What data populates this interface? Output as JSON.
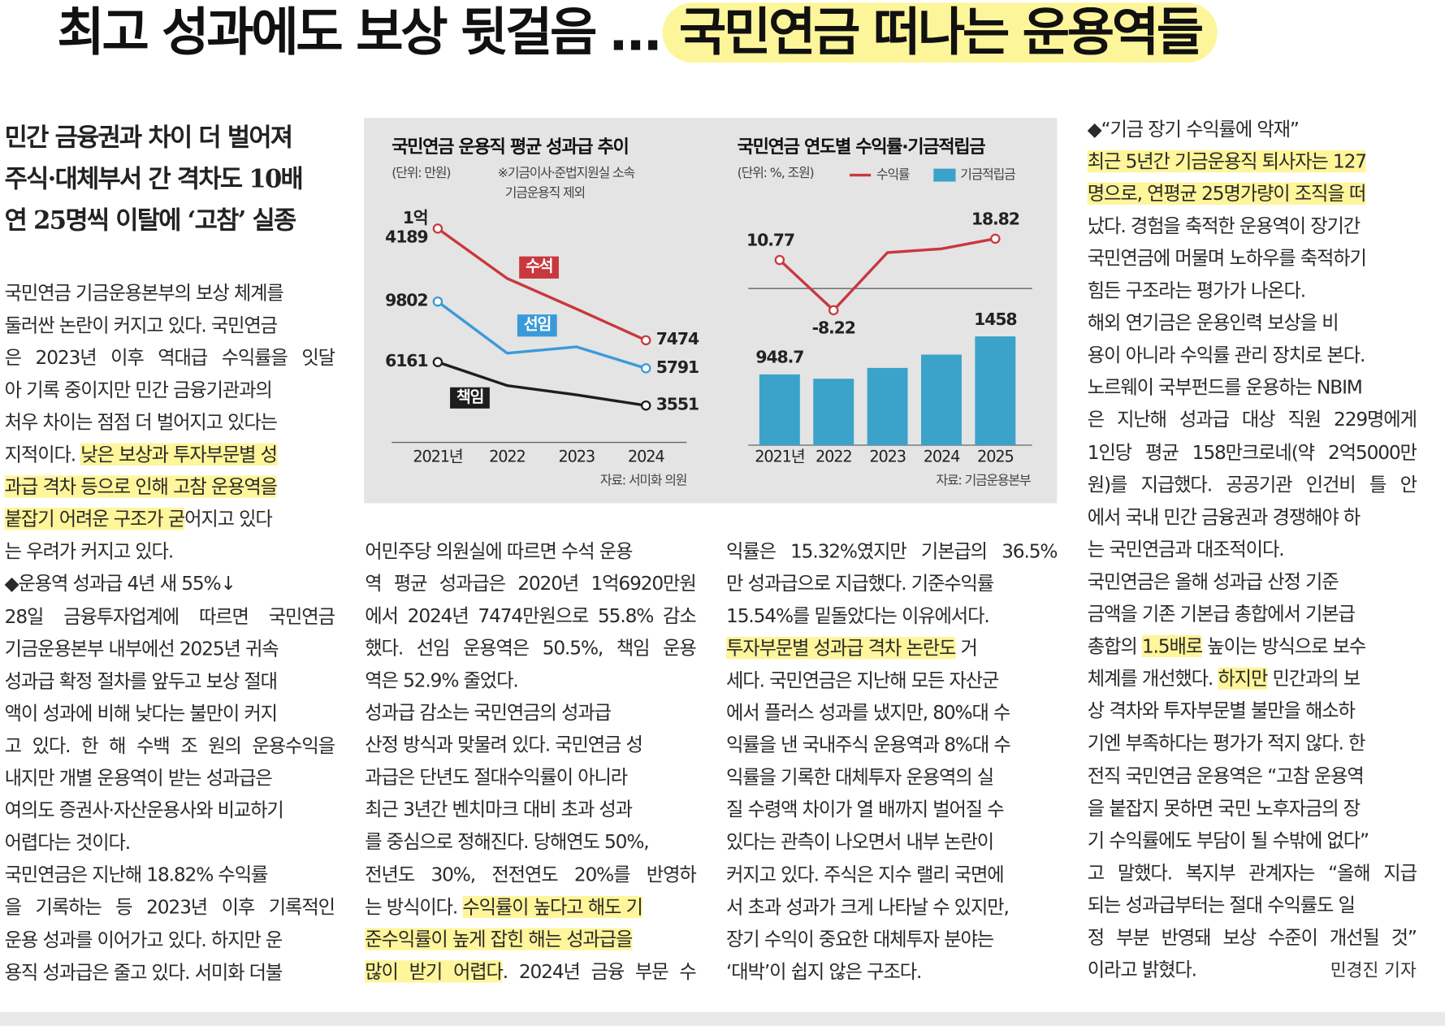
{
  "headline": [
    "최고 성과에도 보상 뒷걸음 …",
    "국민연금 떠나는 운용역들"
  ],
  "deck": [
    "민간 금융권과 차이 더 벌어져",
    "주식·대체부서 간 격차도 10배",
    "연 25명씩 이탈에 ‘고참’ 실종"
  ],
  "columns": [
    {
      "lines": [
        [
          "국민연금 기금운용본부의 보상 체계를"
        ],
        [
          "둘러싼 논란이 커지고 있다. 국민연금"
        ],
        [
          "은 2023년 이후 역대급 수익률을 잇달"
        ],
        [
          "아 기록 중이지만 민간 금융기관과의"
        ],
        [
          "처우 차이는 점점 더 벌어지고 있다는"
        ],
        [
          "지적이다. ",
          {
            "hl": "낮은 보상과 투자부문별 성"
          }
        ],
        [
          {
            "hl": "과급 격차 등으로 인해 고참 운용역을"
          }
        ],
        [
          {
            "hl": "붙잡기 어려운 구조가 굳"
          },
          "어지고 있다"
        ],
        [
          "는 우려가 커지고 있다."
        ],
        [
          "◆운용역 성과급 4년 새 55%↓"
        ],
        [
          "28일 금융투자업계에 따르면 국민연금"
        ],
        [
          "기금운용본부 내부에선 2025년 귀속"
        ],
        [
          "성과급 확정 절차를 앞두고 보상 절대"
        ],
        [
          "액이 성과에 비해 낮다는 불만이 커지"
        ],
        [
          "고 있다. 한 해 수백 조 원의 운용수익을"
        ],
        [
          "내지만 개별 운용역이 받는 성과급은"
        ],
        [
          "여의도 증권사·자산운용사와 비교하기"
        ],
        [
          "어렵다는 것이다."
        ],
        [
          "국민연금은 지난해 18.82% 수익률"
        ],
        [
          "을 기록하는 등 2023년 이후 기록적인"
        ],
        [
          "운용 성과를 이어가고 있다. 하지만 운"
        ],
        [
          "용직 성과급은 줄고 있다. 서미화 더불"
        ]
      ]
    },
    {
      "lines": [
        [
          "어민주당 의원실에 따르면 수석 운용"
        ],
        [
          "역 평균 성과급은 2020년 1억6920만원"
        ],
        [
          "에서 2024년 7474만원으로 55.8% 감소"
        ],
        [
          "했다. 선임 운용역은 50.5%, 책임 운용"
        ],
        [
          "역은 52.9% 줄었다."
        ],
        [
          "성과급 감소는 국민연금의 성과급"
        ],
        [
          "산정 방식과 맞물려 있다. 국민연금 성"
        ],
        [
          "과급은 단년도 절대수익률이 아니라"
        ],
        [
          "최근 3년간 벤치마크 대비 초과 성과"
        ],
        [
          "를 중심으로 정해진다. 당해연도 50%,"
        ],
        [
          "전년도 30%, 전전연도 20%를 반영하"
        ],
        [
          "는 방식이다. ",
          {
            "hl": "수익률이 높다고 해도 기"
          }
        ],
        [
          {
            "hl": "준수익률이 높게 잡힌 해는 성과급을"
          }
        ],
        [
          {
            "hl": "많이 받기 어렵다"
          },
          ". 2024년 금융 부문 수"
        ]
      ]
    },
    {
      "lines": [
        [
          "익률은 15.32%였지만 기본급의 36.5%"
        ],
        [
          "만 성과급으로 지급했다. 기준수익률"
        ],
        [
          "15.54%를 밑돌았다는 이유에서다."
        ],
        [
          {
            "hl": "투자부문별 성과급 격차 논란도"
          },
          " 거"
        ],
        [
          "세다. 국민연금은 지난해 모든 자산군"
        ],
        [
          "에서 플러스 성과를 냈지만, 80%대 수"
        ],
        [
          "익률을 낸 국내주식 운용역과 8%대 수"
        ],
        [
          "익률을 기록한 대체투자 운용역의 실"
        ],
        [
          "질 수령액 차이가 열 배까지 벌어질 수"
        ],
        [
          "있다는 관측이 나오면서 내부 논란이"
        ],
        [
          "커지고 있다. 주식은 지수 랠리 국면에"
        ],
        [
          "서 초과 성과가 크게 나타날 수 있지만,"
        ],
        [
          "장기 수익이 중요한 대체투자 분야는"
        ],
        [
          "‘대박’이 쉽지 않은 구조다."
        ]
      ]
    },
    {
      "lines": [
        [
          "◆“기금 장기 수익률에 악재”"
        ],
        [
          {
            "hl": "최근 5년간 기금운용직 퇴사자는 127"
          }
        ],
        [
          {
            "hl": "명으로, 연평균 25명가량이 조직을 떠"
          }
        ],
        [
          "났다. 경험을 축적한 운용역이 장기간"
        ],
        [
          "국민연금에 머물며 노하우를 축적하기"
        ],
        [
          "힘든 구조라는 평가가 나온다."
        ],
        [
          "해외 연기금은 운용인력 보상을 비"
        ],
        [
          "용이 아니라 수익률 관리 장치로 본다."
        ],
        [
          "노르웨이 국부펀드를 운용하는 NBIM"
        ],
        [
          "은 지난해 성과급 대상 직원 229명에게"
        ],
        [
          "1인당 평균 158만크로네(약 2억5000만"
        ],
        [
          "원)를 지급했다. 공공기관 인건비 틀 안"
        ],
        [
          "에서 국내 민간 금융권과 경쟁해야 하"
        ],
        [
          "는 국민연금과 대조적이다."
        ],
        [
          "국민연금은 올해 성과급 산정 기준"
        ],
        [
          "금액을 기존 기본급 총합에서 기본급"
        ],
        [
          "총합의 ",
          {
            "hl": "1.5배로"
          },
          " 높이는 방식으로 보수"
        ],
        [
          "체계를 개선했다. ",
          {
            "hl": "하지만"
          },
          " 민간과의 보"
        ],
        [
          "상 격차와 투자부문별 불만을 해소하"
        ],
        [
          "기엔 부족하다는 평가가 적지 않다. 한"
        ],
        [
          "전직 국민연금 운용역은 “고참 운용역"
        ],
        [
          "을 붙잡지 못하면 국민 노후자금의 장"
        ],
        [
          "기 수익률에도 부담이 될 수밖에 없다”"
        ],
        [
          "고 말했다. 복지부 관계자는 “올해 지급"
        ],
        [
          "되는 성과급부터는 절대 수익률도 일"
        ],
        [
          "정 부분 반영돼 보상 수준이 개선될 것”"
        ],
        [
          "이라고 밝혔다."
        ]
      ]
    }
  ],
  "byline": "민경진 기자",
  "chart_data": [
    {
      "type": "line",
      "title": "국민연금 운용직 평균 성과급 추이",
      "unit": "(단위: 만원)",
      "note": [
        "※기금이사·준법지원실 소속",
        "기금운용직 제외"
      ],
      "source": "자료: 서미화 의원",
      "categories": [
        "2021년",
        "2022",
        "2023",
        "2024"
      ],
      "series": [
        {
          "name": "수석",
          "color": "#c8383d",
          "values": [
            14189,
            11192,
            9360,
            7474
          ],
          "value_labels": [
            "1억\n4189",
            null,
            null,
            "7474"
          ]
        },
        {
          "name": "선임",
          "color": "#3a9ad9",
          "values": [
            9802,
            6697,
            7078,
            5791
          ],
          "value_labels": [
            "9802",
            null,
            null,
            "5791"
          ]
        },
        {
          "name": "책임",
          "color": "#1e1e1e",
          "values": [
            6161,
            4751,
            4196,
            3551
          ],
          "value_labels": [
            "6161",
            null,
            null,
            "3551"
          ]
        }
      ]
    },
    {
      "type": "combo",
      "title": "국민연금 연도별 수익률·기금적립금",
      "unit": "(단위: %, 조원)",
      "source": "자료: 기금운용본부",
      "categories": [
        "2021년",
        "2022",
        "2023",
        "2024",
        "2025"
      ],
      "series": [
        {
          "name": "수익률",
          "type": "line",
          "color": "#c8383d",
          "values": [
            10.77,
            -8.22,
            13.59,
            15.0,
            18.82
          ],
          "value_labels": [
            "10.77",
            "-8.22",
            null,
            null,
            "18.82"
          ]
        },
        {
          "name": "기금적립금",
          "type": "bar",
          "color": "#3ba3c9",
          "values": [
            948.7,
            890.5,
            1035.8,
            1213.9,
            1458
          ],
          "value_labels": [
            "948.7",
            null,
            null,
            null,
            "1458"
          ]
        }
      ]
    }
  ]
}
